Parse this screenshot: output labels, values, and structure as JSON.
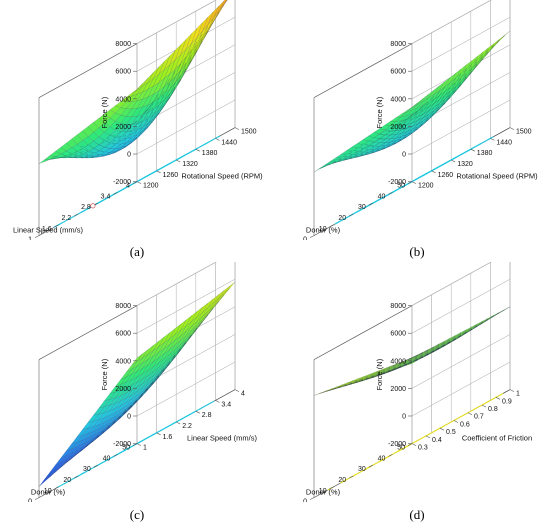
{
  "chart_data": [
    {
      "type": "surface3d",
      "caption": "(a)",
      "zlabel": "Force (N)",
      "z_ticks": [
        "8000",
        "6000",
        "4000",
        "2000",
        "0",
        "-2000"
      ],
      "zlim": [
        -2000,
        8000
      ],
      "x_axis": {
        "label": "Linear Speed (mm/s)",
        "ticks": [
          "4",
          "3.4",
          "2.8",
          "2.2",
          "1.6",
          "1"
        ],
        "range": [
          1,
          4
        ]
      },
      "y_axis": {
        "label": "Rotational Speed (RPM)",
        "ticks": [
          "1200",
          "1260",
          "1320",
          "1380",
          "1440",
          "1500"
        ],
        "range": [
          1200,
          1500
        ]
      },
      "surface": {
        "corners": {
          "x_min_y_min": 3200,
          "x_max_y_min": 4700,
          "x_min_y_max": 2200,
          "x_max_y_max": 8000
        },
        "center": 1200
      },
      "colormap": [
        "#1a2fd0",
        "#2a6fe8",
        "#25c7e0",
        "#2ee87a",
        "#9af01e",
        "#f0e01a",
        "#f08a1a"
      ],
      "color_range": [
        -2000,
        8000
      ],
      "contour_color": "#22c8e0",
      "design_point": "white dot"
    },
    {
      "type": "surface3d",
      "caption": "(b)",
      "zlabel": "Force (N)",
      "z_ticks": [
        "8000",
        "6000",
        "4000",
        "2000",
        "0",
        "-2000"
      ],
      "zlim": [
        -2000,
        8000
      ],
      "x_axis": {
        "label": "Donor (%)",
        "ticks": [
          "50",
          "40",
          "30",
          "20",
          "10",
          "0"
        ],
        "range": [
          0,
          50
        ]
      },
      "y_axis": {
        "label": "Rotational Speed (RPM)",
        "ticks": [
          "1200",
          "1260",
          "1320",
          "1380",
          "1440",
          "1500"
        ],
        "range": [
          1200,
          1500
        ]
      },
      "surface": {
        "corners": {
          "x_min_y_min": 2600,
          "x_max_y_min": 2800,
          "x_min_y_max": 3400,
          "x_max_y_max": 5000
        },
        "center": 1500
      },
      "colormap": [
        "#1a2fd0",
        "#2a6fe8",
        "#25c7e0",
        "#2ee87a",
        "#9af01e",
        "#f0e01a",
        "#f08a1a"
      ],
      "color_range": [
        -2000,
        8000
      ],
      "contour_color": "#22c8e0"
    },
    {
      "type": "surface3d",
      "caption": "(c)",
      "zlabel": "Force (N)",
      "z_ticks": [
        "8000",
        "6000",
        "4000",
        "2000",
        "0",
        "-2000"
      ],
      "zlim": [
        -2000,
        8000
      ],
      "x_axis": {
        "label": "Donor (%)",
        "ticks": [
          "50",
          "40",
          "30",
          "20",
          "10",
          "0"
        ],
        "range": [
          0,
          50
        ]
      },
      "y_axis": {
        "label": "Linear Speed (mm/s)",
        "ticks": [
          "1",
          "1.6",
          "2.2",
          "2.8",
          "3.4",
          "4"
        ],
        "range": [
          1,
          4
        ]
      },
      "surface": {
        "corners": {
          "x_min_y_min": -1200,
          "x_max_y_min": 1100,
          "x_min_y_max": 4200,
          "x_max_y_max": 5800
        },
        "center": 1300
      },
      "colormap": [
        "#1a2fd0",
        "#2a6fe8",
        "#25c7e0",
        "#2ee87a",
        "#9af01e",
        "#f0e01a",
        "#f08a1a"
      ],
      "color_range": [
        -2000,
        8000
      ],
      "contour_color": "#22c8e0"
    },
    {
      "type": "surface3d",
      "caption": "(d)",
      "zlabel": "Force (N)",
      "z_ticks": [
        "8000",
        "6000",
        "4000",
        "2000",
        "0",
        "-2000"
      ],
      "zlim": [
        -2000,
        8000
      ],
      "x_axis": {
        "label": "Donor (%)",
        "ticks": [
          "50",
          "40",
          "30",
          "20",
          "10",
          "0"
        ],
        "range": [
          0,
          50
        ]
      },
      "y_axis": {
        "label": "Coefficient of Friction",
        "ticks": [
          "0.3",
          "0.4",
          "0.5",
          "0.6",
          "0.7",
          "0.8",
          "0.9",
          "1"
        ],
        "range": [
          0.3,
          1
        ]
      },
      "surface": {
        "corners": {
          "x_min_y_min": 5400,
          "x_max_y_min": 3800,
          "x_min_y_max": 4200,
          "x_max_y_max": 4000
        },
        "center": 3900
      },
      "colormap": [
        "#1a2fd0",
        "#2a6fe8",
        "#25c7e0",
        "#2ee87a",
        "#9af01e",
        "#f0e01a",
        "#f08a1a"
      ],
      "color_range": [
        -2000,
        8000
      ],
      "contour_color": "#e8e020"
    }
  ]
}
